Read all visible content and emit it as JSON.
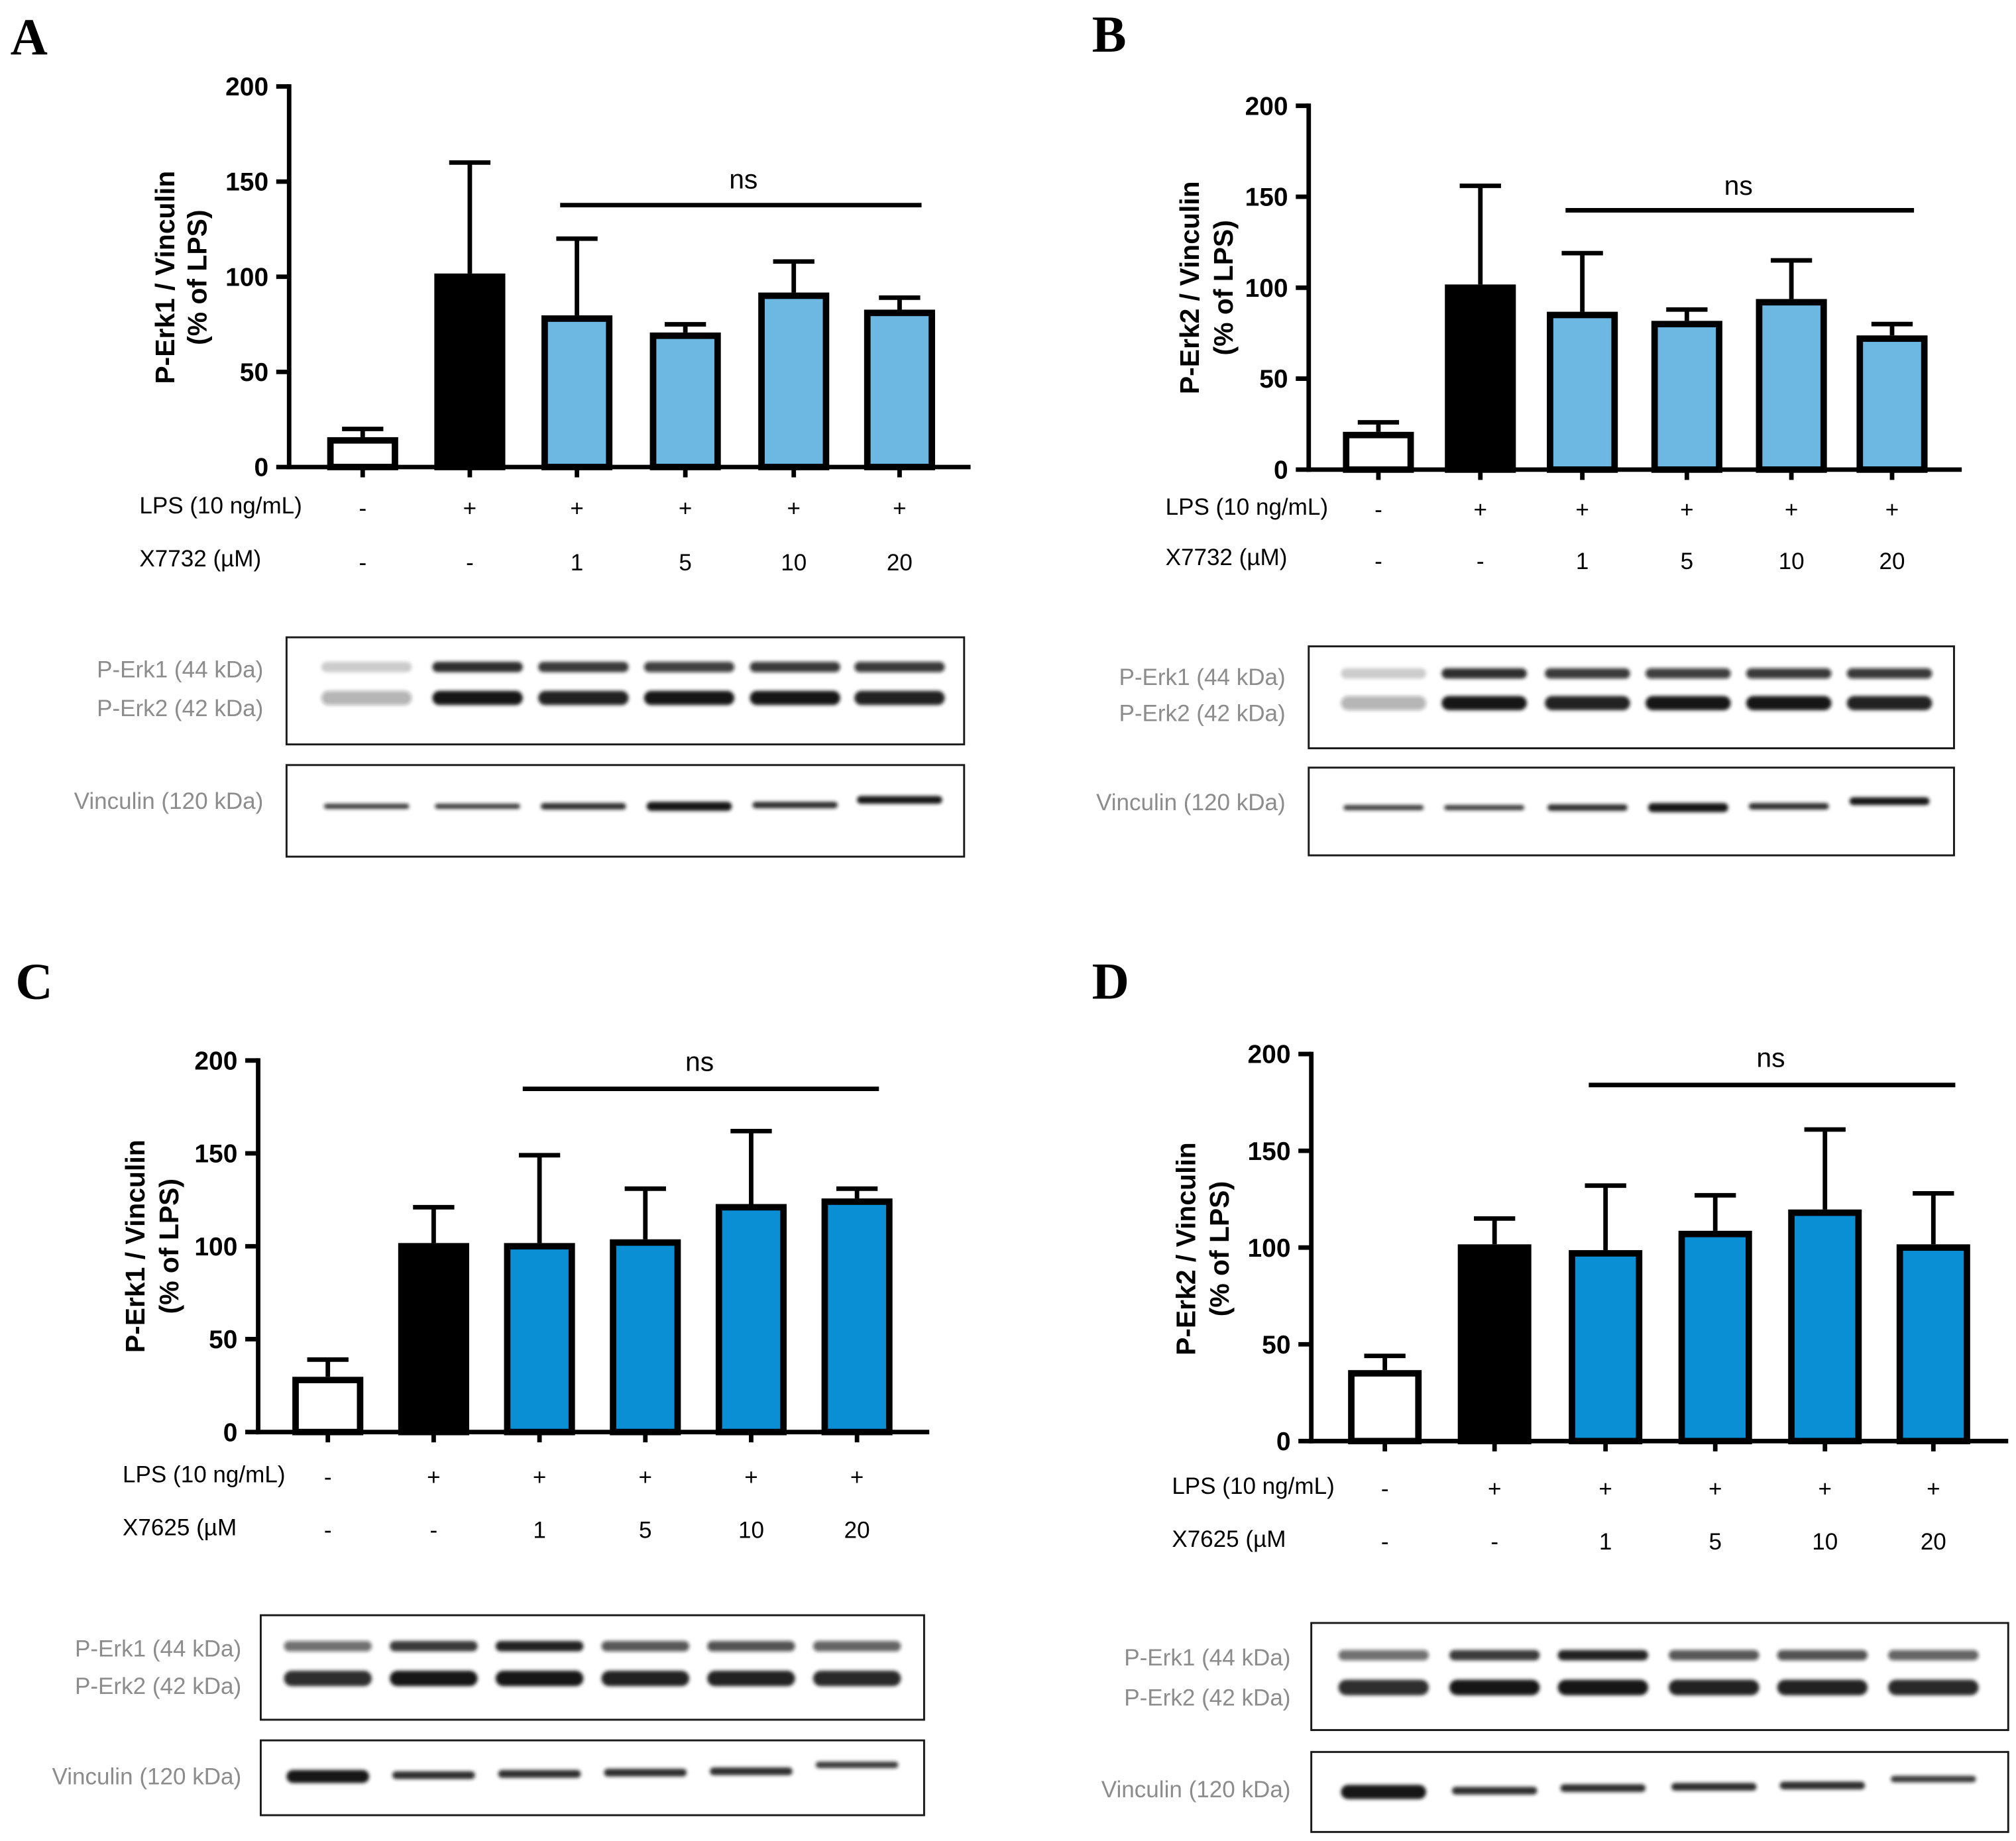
{
  "figure": {
    "panels": [
      {
        "label": "A",
        "blot": {
          "upper_labels": [
            "P-Erk1 (44 kDa)",
            "P-Erk2 (42 kDa)"
          ],
          "lower_label": "Vinculin (120 kDa)"
        }
      },
      {
        "label": "B",
        "blot": {
          "upper_labels": [
            "P-Erk1 (44 kDa)",
            "P-Erk2 (42 kDa)"
          ],
          "lower_label": "Vinculin (120 kDa)"
        }
      },
      {
        "label": "C",
        "blot": {
          "upper_labels": [
            "P-Erk1 (44 kDa)",
            "P-Erk2 (42 kDa)"
          ],
          "lower_label": "Vinculin (120 kDa)"
        }
      },
      {
        "label": "D",
        "blot": {
          "upper_labels": [
            "P-Erk1 (44 kDa)",
            "P-Erk2 (42 kDa)"
          ],
          "lower_label": "Vinculin (120 kDa)"
        }
      }
    ]
  },
  "chart_data": [
    {
      "type": "bar",
      "ylabel": [
        "P-Erk1 / Vinculin",
        "(% of LPS)"
      ],
      "ylim": [
        0,
        200
      ],
      "yticks": [
        0,
        50,
        100,
        150,
        200
      ],
      "conditions": [
        {
          "label": "LPS (10 ng/mL)",
          "values": [
            "-",
            "+",
            "+",
            "+",
            "+",
            "+"
          ]
        },
        {
          "label": "X7732 (µM)",
          "values": [
            "-",
            "-",
            "1",
            "5",
            "10",
            "20"
          ]
        }
      ],
      "values": [
        14,
        100,
        78,
        69,
        90,
        81
      ],
      "errors": [
        6,
        60,
        42,
        6,
        18,
        8
      ],
      "colors": [
        "#ffffff",
        "#000000",
        "#6cb8e3",
        "#6cb8e3",
        "#6cb8e3",
        "#6cb8e3"
      ],
      "annotations": [
        {
          "text": "ns",
          "from_bar": 3,
          "to_bar": 6
        }
      ]
    },
    {
      "type": "bar",
      "ylabel": [
        "P-Erk2 / Vinculin",
        "(% of LPS)"
      ],
      "ylim": [
        0,
        200
      ],
      "yticks": [
        0,
        50,
        100,
        150,
        200
      ],
      "conditions": [
        {
          "label": "LPS (10 ng/mL)",
          "values": [
            "-",
            "+",
            "+",
            "+",
            "+",
            "+"
          ]
        },
        {
          "label": "X7732 (µM)",
          "values": [
            "-",
            "-",
            "1",
            "5",
            "10",
            "20"
          ]
        }
      ],
      "values": [
        19,
        100,
        85,
        80,
        92,
        72
      ],
      "errors": [
        7,
        56,
        34,
        8,
        23,
        8
      ],
      "colors": [
        "#ffffff",
        "#000000",
        "#6cb8e3",
        "#6cb8e3",
        "#6cb8e3",
        "#6cb8e3"
      ],
      "annotations": [
        {
          "text": "ns",
          "from_bar": 3,
          "to_bar": 6
        }
      ]
    },
    {
      "type": "bar",
      "ylabel": [
        "P-Erk1 / Vinculin",
        "(% of LPS)"
      ],
      "ylim": [
        0,
        200
      ],
      "yticks": [
        0,
        50,
        100,
        150,
        200
      ],
      "conditions": [
        {
          "label": "LPS (10 ng/mL)",
          "values": [
            "-",
            "+",
            "+",
            "+",
            "+",
            "+"
          ]
        },
        {
          "label": "X7625 (µM",
          "values": [
            "-",
            "-",
            "1",
            "5",
            "10",
            "20"
          ]
        }
      ],
      "values": [
        28,
        100,
        100,
        102,
        121,
        124
      ],
      "errors": [
        11,
        21,
        49,
        29,
        41,
        7
      ],
      "colors": [
        "#ffffff",
        "#000000",
        "#0a8ed4",
        "#0a8ed4",
        "#0a8ed4",
        "#0a8ed4"
      ],
      "annotations": [
        {
          "text": "ns",
          "from_bar": 3,
          "to_bar": 6
        }
      ]
    },
    {
      "type": "bar",
      "ylabel": [
        "P-Erk2 / Vinculin",
        "(% of LPS)"
      ],
      "ylim": [
        0,
        200
      ],
      "yticks": [
        0,
        50,
        100,
        150,
        200
      ],
      "conditions": [
        {
          "label": "LPS (10 ng/mL)",
          "values": [
            "-",
            "+",
            "+",
            "+",
            "+",
            "+"
          ]
        },
        {
          "label": "X7625 (µM",
          "values": [
            "-",
            "-",
            "1",
            "5",
            "10",
            "20"
          ]
        }
      ],
      "values": [
        35,
        100,
        97,
        107,
        118,
        100
      ],
      "errors": [
        9,
        15,
        35,
        20,
        43,
        28
      ],
      "colors": [
        "#ffffff",
        "#000000",
        "#0a8ed4",
        "#0a8ed4",
        "#0a8ed4",
        "#0a8ed4"
      ],
      "annotations": [
        {
          "text": "ns",
          "from_bar": 3,
          "to_bar": 6
        }
      ]
    }
  ]
}
